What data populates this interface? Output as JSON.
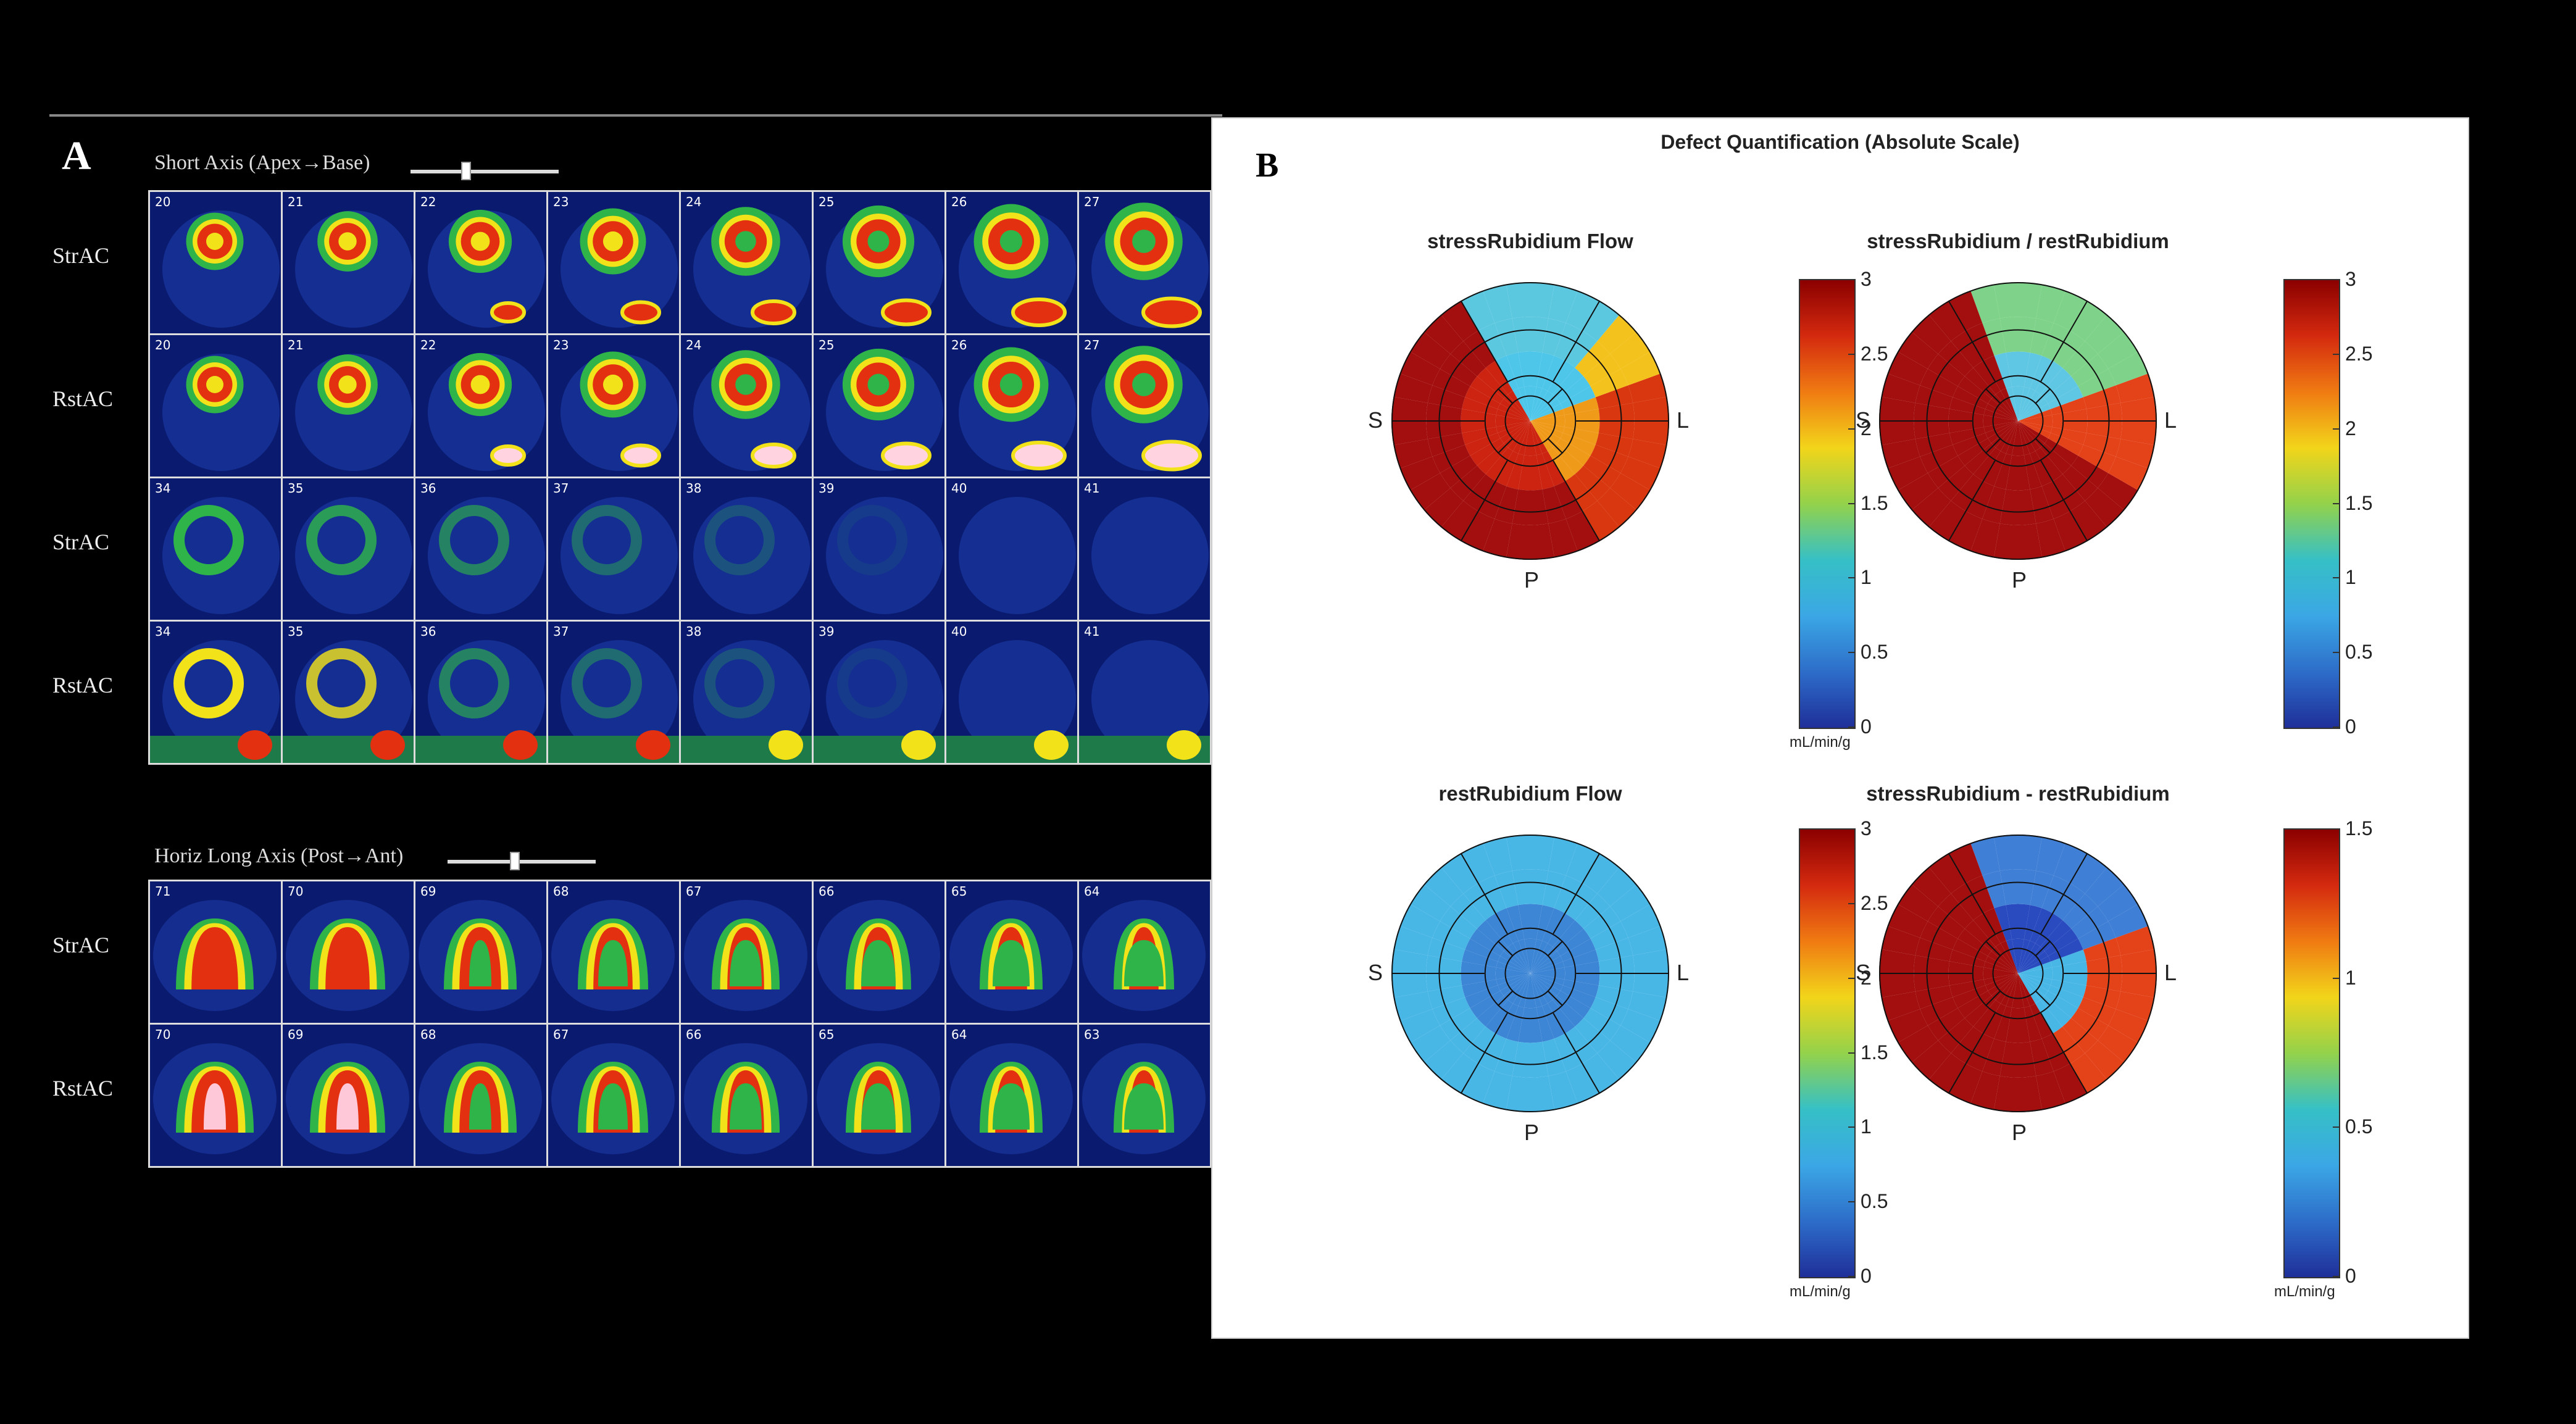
{
  "panel_a": {
    "letter": "A",
    "short_axis": {
      "title": "Short Axis (Apex→Base)",
      "rows": [
        {
          "label": "StrAC",
          "slices": [
            "20",
            "21",
            "22",
            "23",
            "24",
            "25",
            "26",
            "27"
          ]
        },
        {
          "label": "RstAC",
          "slices": [
            "20",
            "21",
            "22",
            "23",
            "24",
            "25",
            "26",
            "27"
          ]
        },
        {
          "label": "StrAC",
          "slices": [
            "34",
            "35",
            "36",
            "37",
            "38",
            "39",
            "40",
            "41"
          ]
        },
        {
          "label": "RstAC",
          "slices": [
            "34",
            "35",
            "36",
            "37",
            "38",
            "39",
            "40",
            "41"
          ]
        }
      ]
    },
    "horiz_long_axis": {
      "title": "Horiz Long Axis (Post→Ant)",
      "rows": [
        {
          "label": "StrAC",
          "slices": [
            "71",
            "70",
            "69",
            "68",
            "67",
            "66",
            "65",
            "64"
          ]
        },
        {
          "label": "RstAC",
          "slices": [
            "70",
            "69",
            "68",
            "67",
            "66",
            "65",
            "64",
            "63"
          ]
        }
      ]
    }
  },
  "panel_b": {
    "letter": "B",
    "title": "Defect Quantification (Absolute Scale)",
    "maps": [
      {
        "title": "stressRubidium Flow",
        "labels": {
          "septal": "S",
          "lateral": "L",
          "posterior": "P"
        },
        "ticks": [
          "3",
          "2.5",
          "2",
          "1.5",
          "1",
          "0.5",
          "0"
        ],
        "unit": "mL/min/g",
        "pattern": "stress"
      },
      {
        "title": "stressRubidium / restRubidium",
        "labels": {
          "septal": "S",
          "lateral": "L",
          "posterior": "P"
        },
        "ticks": [
          "3",
          "2.5",
          "2",
          "1.5",
          "1",
          "0.5",
          "0"
        ],
        "unit": "",
        "pattern": "ratio"
      },
      {
        "title": "restRubidium Flow",
        "labels": {
          "septal": "S",
          "lateral": "L",
          "posterior": "P"
        },
        "ticks": [
          "3",
          "2.5",
          "2",
          "1.5",
          "1",
          "0.5",
          "0"
        ],
        "unit": "mL/min/g",
        "pattern": "rest"
      },
      {
        "title": "stressRubidium - restRubidium",
        "labels": {
          "septal": "S",
          "lateral": "L",
          "posterior": "P"
        },
        "ticks": [
          "1.5",
          "1",
          "0.5",
          "0"
        ],
        "unit": "mL/min/g",
        "pattern": "diff"
      }
    ]
  },
  "colors": {
    "hot_red": "#a10d0d",
    "red": "#e23010",
    "yellow": "#f2e21a",
    "green": "#2fb44a",
    "cyan": "#4ec6ea",
    "blue": "#1e3fb0",
    "navy": "#0a1a6e"
  }
}
